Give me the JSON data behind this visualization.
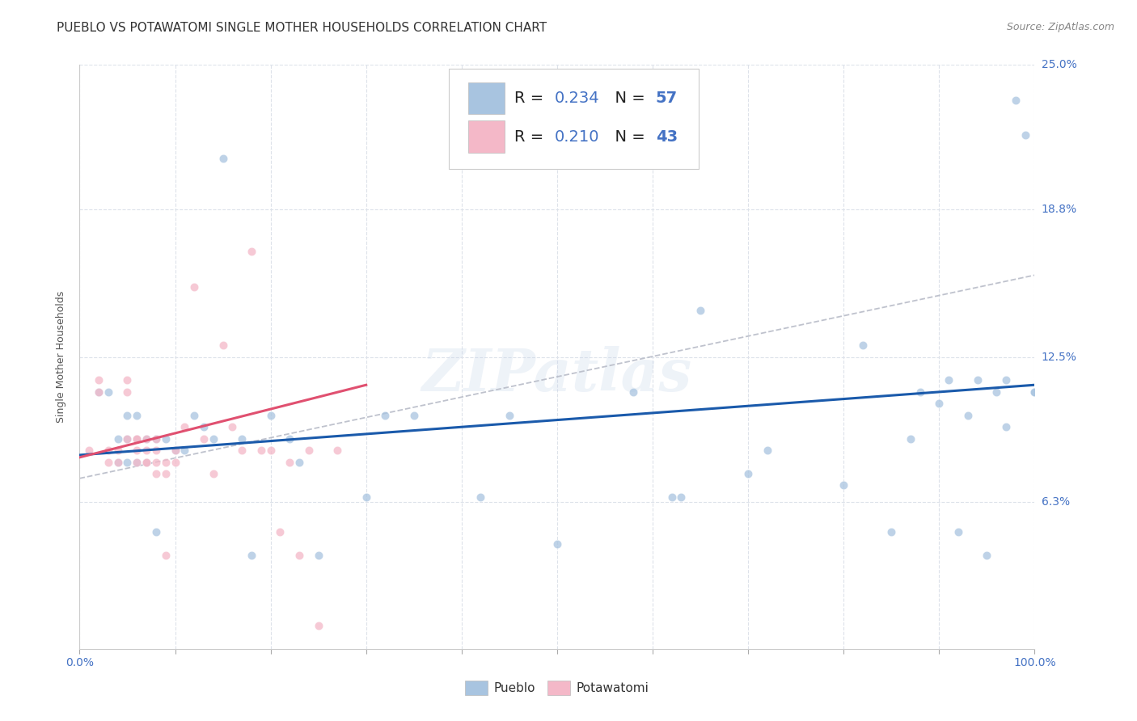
{
  "title": "PUEBLO VS POTAWATOMI SINGLE MOTHER HOUSEHOLDS CORRELATION CHART",
  "source": "Source: ZipAtlas.com",
  "ylabel": "Single Mother Households",
  "xlim": [
    0,
    1
  ],
  "ylim": [
    0,
    0.25
  ],
  "y_ticks": [
    0.063,
    0.125,
    0.188,
    0.25
  ],
  "y_tick_labels": [
    "6.3%",
    "12.5%",
    "18.8%",
    "25.0%"
  ],
  "pueblo_color": "#a8c4e0",
  "potawatomi_color": "#f4b8c8",
  "pueblo_line_color": "#1a5aab",
  "potawatomi_line_color": "#e05070",
  "trend_line_color": "#b8bcc8",
  "legend_color": "#4472c4",
  "pueblo_R": 0.234,
  "pueblo_N": 57,
  "potawatomi_R": 0.21,
  "potawatomi_N": 43,
  "watermark": "ZIPatlas",
  "pueblo_points_x": [
    0.02,
    0.03,
    0.04,
    0.04,
    0.05,
    0.05,
    0.05,
    0.06,
    0.06,
    0.06,
    0.07,
    0.07,
    0.08,
    0.08,
    0.09,
    0.1,
    0.11,
    0.12,
    0.13,
    0.14,
    0.15,
    0.17,
    0.18,
    0.2,
    0.22,
    0.23,
    0.25,
    0.3,
    0.32,
    0.35,
    0.42,
    0.45,
    0.5,
    0.58,
    0.62,
    0.63,
    0.65,
    0.7,
    0.72,
    0.8,
    0.82,
    0.85,
    0.87,
    0.88,
    0.9,
    0.91,
    0.92,
    0.93,
    0.94,
    0.95,
    0.96,
    0.97,
    0.97,
    0.98,
    0.99,
    1.0,
    1.0
  ],
  "pueblo_points_y": [
    0.11,
    0.11,
    0.08,
    0.09,
    0.08,
    0.09,
    0.1,
    0.08,
    0.09,
    0.1,
    0.09,
    0.08,
    0.09,
    0.05,
    0.09,
    0.085,
    0.085,
    0.1,
    0.095,
    0.09,
    0.21,
    0.09,
    0.04,
    0.1,
    0.09,
    0.08,
    0.04,
    0.065,
    0.1,
    0.1,
    0.065,
    0.1,
    0.045,
    0.11,
    0.065,
    0.065,
    0.145,
    0.075,
    0.085,
    0.07,
    0.13,
    0.05,
    0.09,
    0.11,
    0.105,
    0.115,
    0.05,
    0.1,
    0.115,
    0.04,
    0.11,
    0.115,
    0.095,
    0.235,
    0.22,
    0.11,
    0.11
  ],
  "potawatomi_points_x": [
    0.01,
    0.02,
    0.02,
    0.03,
    0.03,
    0.04,
    0.04,
    0.05,
    0.05,
    0.05,
    0.06,
    0.06,
    0.06,
    0.06,
    0.07,
    0.07,
    0.07,
    0.07,
    0.08,
    0.08,
    0.08,
    0.08,
    0.09,
    0.09,
    0.09,
    0.1,
    0.1,
    0.11,
    0.12,
    0.13,
    0.14,
    0.15,
    0.16,
    0.17,
    0.18,
    0.19,
    0.2,
    0.21,
    0.22,
    0.23,
    0.24,
    0.25,
    0.27
  ],
  "potawatomi_points_y": [
    0.085,
    0.11,
    0.115,
    0.085,
    0.08,
    0.08,
    0.085,
    0.09,
    0.11,
    0.115,
    0.08,
    0.085,
    0.09,
    0.09,
    0.08,
    0.08,
    0.085,
    0.09,
    0.075,
    0.08,
    0.085,
    0.09,
    0.04,
    0.075,
    0.08,
    0.08,
    0.085,
    0.095,
    0.155,
    0.09,
    0.075,
    0.13,
    0.095,
    0.085,
    0.17,
    0.085,
    0.085,
    0.05,
    0.08,
    0.04,
    0.085,
    0.01,
    0.085
  ],
  "pueblo_trend_x": [
    0.0,
    1.0
  ],
  "pueblo_trend_y": [
    0.083,
    0.113
  ],
  "potawatomi_trend_x": [
    0.0,
    0.3
  ],
  "potawatomi_trend_y": [
    0.082,
    0.113
  ],
  "dashed_trend_x": [
    0.0,
    1.0
  ],
  "dashed_trend_y": [
    0.073,
    0.16
  ],
  "background_color": "#ffffff",
  "grid_color": "#dde2ea",
  "title_fontsize": 11,
  "axis_label_fontsize": 9,
  "tick_fontsize": 10,
  "scatter_size": 55,
  "scatter_alpha": 0.75
}
